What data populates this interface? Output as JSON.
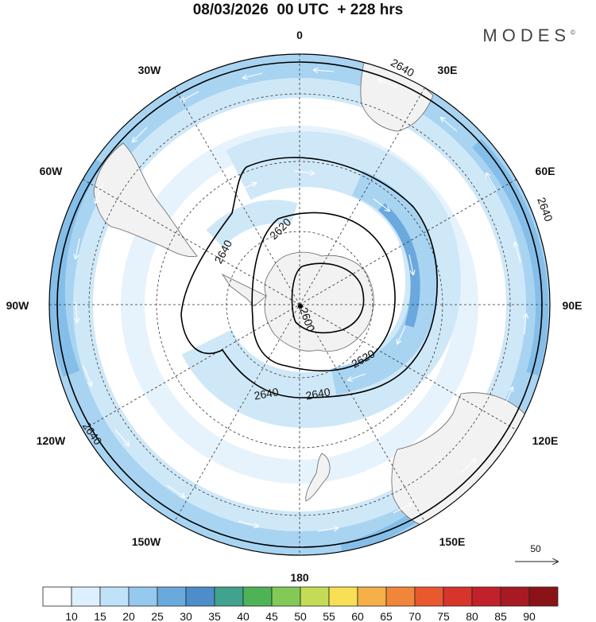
{
  "header": {
    "title": "08/03/2026  00 UTC  + 228 hrs",
    "logo": "MODES",
    "logo_mark": "©"
  },
  "map": {
    "projection": "south-polar-stereographic",
    "longitude_labels": [
      "0",
      "30E",
      "60E",
      "90E",
      "120E",
      "150E",
      "180",
      "150W",
      "120W",
      "90W",
      "60W",
      "30W"
    ],
    "contour_labels": [
      "2640",
      "2640",
      "2640",
      "2640",
      "2640",
      "2640",
      "2620",
      "2620",
      "2600"
    ],
    "vector_reference": "50",
    "colors": {
      "land": "#f2f2f2",
      "coast": "#666666",
      "contour": "#000000",
      "grid": "#333333",
      "shade_10": "#cfe8f8",
      "shade_15": "#a8d4f2",
      "shade_20": "#85bee9",
      "shade_25": "#6aa8dd"
    }
  },
  "colorbar": {
    "ticks": [
      "10",
      "15",
      "20",
      "25",
      "30",
      "35",
      "40",
      "45",
      "50",
      "55",
      "60",
      "65",
      "70",
      "75",
      "80",
      "85",
      "90"
    ],
    "colors": [
      "#ffffff",
      "#ddf0fd",
      "#bfe2f9",
      "#95c9ee",
      "#6aa9dd",
      "#4d8dca",
      "#40a28f",
      "#4db356",
      "#82c957",
      "#c4dc55",
      "#f8df56",
      "#f5b049",
      "#f0863a",
      "#e9582f",
      "#d7352b",
      "#c2212b",
      "#a81a22",
      "#8a1317"
    ]
  }
}
